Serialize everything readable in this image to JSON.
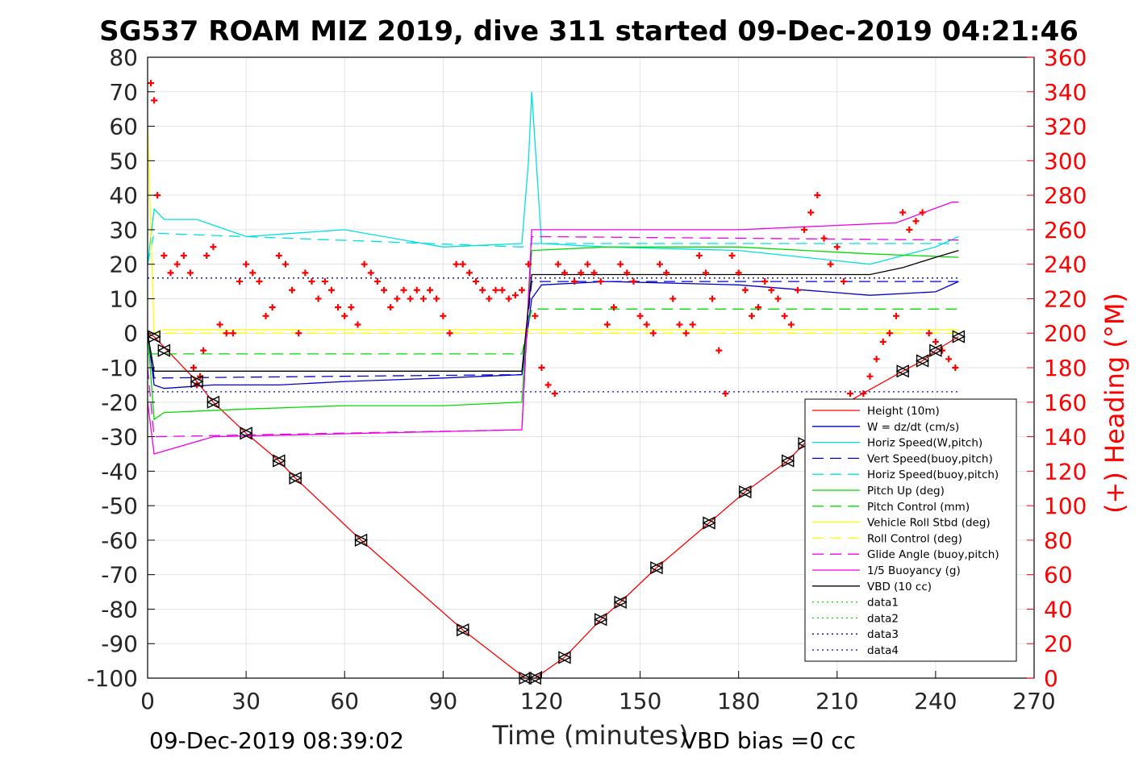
{
  "chart_data": {
    "type": "line",
    "title": "SG537 ROAM MIZ 2019, dive 311 started 09-Dec-2019 04:21:46",
    "xlabel": "Time (minutes)",
    "ylabel_right": "(+) Heading (°M)",
    "footer_left": "09-Dec-2019 08:39:02",
    "footer_right": "VBD bias =0 cc",
    "xlim": [
      0,
      270
    ],
    "ylim_left": [
      -100,
      80
    ],
    "ylim_right": [
      0,
      360
    ],
    "xticks": [
      0,
      30,
      60,
      90,
      120,
      150,
      180,
      210,
      240,
      270
    ],
    "yticks_left": [
      80,
      70,
      60,
      50,
      40,
      30,
      20,
      10,
      0,
      -10,
      -20,
      -30,
      -40,
      -50,
      -60,
      -70,
      -80,
      -90,
      -100
    ],
    "yticks_right": [
      360,
      340,
      320,
      300,
      280,
      260,
      240,
      220,
      200,
      180,
      160,
      140,
      120,
      100,
      80,
      60,
      40,
      20,
      0
    ],
    "grid": true,
    "legend_position": "bottom-right",
    "series": [
      {
        "name": "Height (10m)",
        "color": "#ff0000",
        "style": "solid",
        "x": [
          0,
          2,
          15,
          20,
          30,
          40,
          45,
          65,
          96,
          115,
          118,
          127,
          138,
          144,
          155,
          171,
          182,
          195,
          200,
          215,
          230,
          236,
          240,
          247
        ],
        "y": [
          0,
          -1,
          -14,
          -20,
          -29,
          -37,
          -42,
          -60,
          -86,
          -100,
          -100,
          -94,
          -83,
          -78,
          -68,
          -55,
          -46,
          -37,
          -32,
          -19,
          -11,
          -8,
          -5,
          -1
        ]
      },
      {
        "name": "W = dz/dt (cm/s)",
        "color": "#0000cc",
        "style": "solid",
        "x": [
          0,
          2,
          5,
          20,
          40,
          60,
          90,
          114,
          117,
          120,
          140,
          180,
          220,
          240,
          247
        ],
        "y": [
          0,
          -15,
          -16,
          -15,
          -15,
          -14,
          -13,
          -12,
          10,
          14,
          15,
          14,
          11,
          12,
          15
        ]
      },
      {
        "name": "Horiz Speed(W,pitch)",
        "color": "#00e0e0",
        "style": "solid",
        "x": [
          0,
          2,
          5,
          15,
          30,
          60,
          90,
          114,
          116,
          117,
          120,
          140,
          180,
          220,
          240,
          247
        ],
        "y": [
          20,
          36,
          33,
          33,
          28,
          30,
          25,
          26,
          50,
          70,
          26,
          25,
          24,
          20,
          25,
          28
        ]
      },
      {
        "name": "Vert Speed(buoy,pitch)",
        "color": "#0000cc",
        "style": "dashed",
        "x": [
          0,
          2,
          114,
          117,
          247
        ],
        "y": [
          0,
          -13,
          -12,
          15,
          15
        ]
      },
      {
        "name": "Horiz Speed(buoy,pitch)",
        "color": "#00e0e0",
        "style": "dashed",
        "x": [
          0,
          2,
          114,
          117,
          247
        ],
        "y": [
          20,
          29,
          25,
          26,
          26
        ]
      },
      {
        "name": "Pitch Up (deg)",
        "color": "#00dd00",
        "style": "solid",
        "x": [
          0,
          2,
          5,
          30,
          60,
          90,
          114,
          117,
          140,
          180,
          220,
          247
        ],
        "y": [
          0,
          -25,
          -23,
          -22,
          -21,
          -21,
          -20,
          24,
          25,
          25,
          23,
          22
        ]
      },
      {
        "name": "Pitch Control (mm)",
        "color": "#00dd00",
        "style": "dashed",
        "x": [
          0,
          114,
          117,
          247
        ],
        "y": [
          -6,
          -6,
          7,
          7
        ]
      },
      {
        "name": "Vehicle Roll Stbd (deg)",
        "color": "#ffff00",
        "style": "solid",
        "x": [
          0,
          2,
          5,
          60,
          114,
          117,
          180,
          247
        ],
        "y": [
          60,
          0,
          1,
          1,
          1,
          1,
          1,
          1
        ]
      },
      {
        "name": "Roll Control (deg)",
        "color": "#ffff00",
        "style": "dashed",
        "x": [
          0,
          247
        ],
        "y": [
          0,
          0
        ]
      },
      {
        "name": "Glide Angle (buoy,pitch)",
        "color": "#ee00ee",
        "style": "dashed",
        "x": [
          0,
          2,
          114,
          117,
          247
        ],
        "y": [
          -10,
          -30,
          -28,
          28,
          27
        ]
      },
      {
        "name": "1/5 Buoyancy (g)",
        "color": "#ee00ee",
        "style": "solid",
        "x": [
          0,
          2,
          20,
          114,
          117,
          180,
          228,
          245,
          247
        ],
        "y": [
          -20,
          -35,
          -30,
          -28,
          30,
          30,
          32,
          38,
          38
        ]
      },
      {
        "name": "VBD (10 cc)",
        "color": "#000000",
        "style": "solid",
        "x": [
          0,
          2,
          114,
          117,
          220,
          230,
          240,
          247
        ],
        "y": [
          0,
          -11,
          -11,
          17,
          17,
          19,
          22,
          24
        ]
      },
      {
        "name": "data1",
        "color": "#00dd00",
        "style": "dotted",
        "x": [],
        "y": []
      },
      {
        "name": "data2",
        "color": "#00dd00",
        "style": "dotted",
        "x": [],
        "y": []
      },
      {
        "name": "data3",
        "color": "#000080",
        "style": "dotted",
        "x": [
          0,
          247
        ],
        "y": [
          16,
          16
        ]
      },
      {
        "name": "data4",
        "color": "#0000cc",
        "style": "dotted",
        "x": [
          0,
          247
        ],
        "y": [
          -17,
          -17
        ]
      }
    ],
    "heading": {
      "axis": "right",
      "color": "#ff0000",
      "marker": "plus",
      "x": [
        1,
        2,
        3,
        5,
        7,
        9,
        11,
        13,
        14,
        15,
        16,
        17,
        18,
        20,
        22,
        24,
        26,
        28,
        30,
        32,
        34,
        36,
        38,
        40,
        42,
        44,
        46,
        48,
        50,
        52,
        54,
        56,
        58,
        60,
        62,
        64,
        66,
        68,
        70,
        72,
        74,
        76,
        78,
        80,
        82,
        84,
        86,
        88,
        90,
        92,
        94,
        96,
        98,
        100,
        102,
        104,
        106,
        108,
        110,
        112,
        114,
        116,
        118,
        120,
        122,
        124,
        125,
        127,
        130,
        132,
        134,
        136,
        138,
        140,
        142,
        144,
        146,
        148,
        150,
        152,
        154,
        156,
        158,
        160,
        162,
        164,
        166,
        168,
        170,
        172,
        174,
        176,
        178,
        180,
        182,
        184,
        186,
        188,
        190,
        192,
        194,
        196,
        198,
        200,
        202,
        204,
        206,
        208,
        210,
        212,
        214,
        216,
        218,
        220,
        222,
        224,
        226,
        228,
        230,
        232,
        234,
        236,
        238,
        240,
        242,
        244,
        246
      ],
      "y": [
        345,
        335,
        280,
        245,
        235,
        240,
        245,
        235,
        180,
        170,
        175,
        190,
        245,
        250,
        205,
        200,
        200,
        230,
        240,
        235,
        230,
        210,
        215,
        245,
        240,
        225,
        200,
        235,
        230,
        220,
        230,
        225,
        215,
        210,
        215,
        205,
        240,
        235,
        230,
        225,
        215,
        220,
        225,
        220,
        225,
        220,
        225,
        220,
        210,
        200,
        240,
        240,
        235,
        230,
        225,
        220,
        225,
        225,
        220,
        222,
        225,
        240,
        210,
        180,
        170,
        165,
        240,
        235,
        230,
        235,
        240,
        235,
        230,
        205,
        215,
        240,
        235,
        230,
        210,
        205,
        200,
        240,
        235,
        220,
        205,
        200,
        205,
        245,
        235,
        220,
        190,
        165,
        245,
        235,
        225,
        210,
        215,
        230,
        225,
        220,
        210,
        205,
        225,
        260,
        270,
        280,
        255,
        240,
        250,
        230,
        165,
        160,
        165,
        175,
        185,
        195,
        200,
        210,
        270,
        260,
        265,
        270,
        200,
        195,
        190,
        185,
        180
      ]
    },
    "markers": {
      "type": "triangles",
      "color": "#000000",
      "x": [
        2,
        5,
        15,
        20,
        30,
        40,
        45,
        65,
        96,
        115,
        118,
        127,
        138,
        144,
        155,
        171,
        182,
        195,
        200,
        230,
        236,
        240,
        247
      ],
      "y": [
        -1,
        -5,
        -14,
        -20,
        -29,
        -37,
        -42,
        -60,
        -86,
        -100,
        -100,
        -94,
        -83,
        -78,
        -68,
        -55,
        -46,
        -37,
        -32,
        -11,
        -8,
        -5,
        -1
      ]
    }
  }
}
